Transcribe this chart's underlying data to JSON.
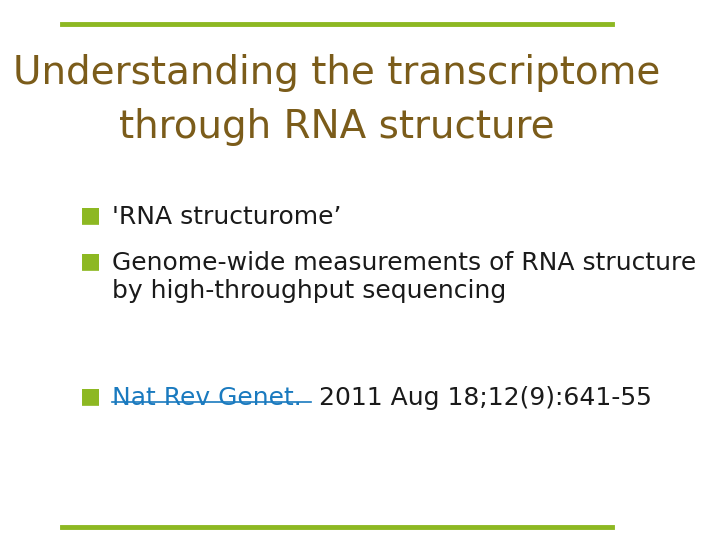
{
  "title_line1": "Understanding the transcriptome",
  "title_line2": "through RNA structure",
  "title_color": "#7B5C1A",
  "title_fontsize": 28,
  "bullet_color": "#8DB822",
  "bullet_char": "■",
  "bullet_fontsize": 16,
  "body_color": "#1a1a1a",
  "body_fontsize": 18,
  "bullets": [
    "'RNA structurome’",
    "Genome-wide measurements of RNA structure\nby high-throughput sequencing"
  ],
  "ref_link_text": "Nat Rev Genet.",
  "ref_link_color": "#1a7abf",
  "ref_rest_text": " 2011 Aug 18;12(9):641-55",
  "ref_fontsize": 18,
  "top_line_color": "#8DB822",
  "bottom_line_color": "#8DB822",
  "bg_color": "#ffffff"
}
